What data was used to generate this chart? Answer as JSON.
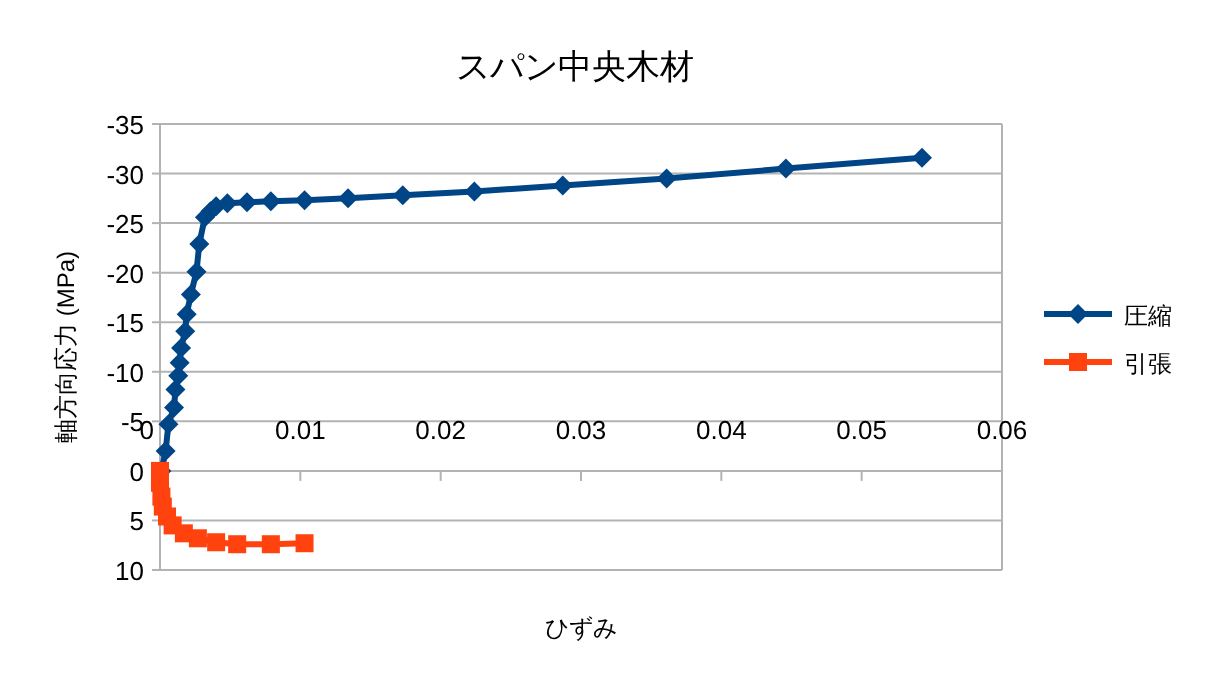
{
  "chart_data": {
    "type": "line",
    "title": "スパン中央木材",
    "xlabel": "ひずみ",
    "ylabel": "軸方向応力 (MPa)",
    "xlim": [
      0,
      0.06
    ],
    "xticks": [
      0,
      0.01,
      0.02,
      0.03,
      0.04,
      0.05,
      0.06
    ],
    "ylim": [
      10,
      -35
    ],
    "yticks": [
      -35,
      -30,
      -25,
      -20,
      -15,
      -10,
      -5,
      0,
      5,
      10
    ],
    "grid": "y",
    "legend": "right",
    "line_style": "solid",
    "series": [
      {
        "name": "圧縮",
        "color": "#004586",
        "marker": "diamond",
        "x": [
          0.0001,
          0.0004,
          0.0006,
          0.001,
          0.0011,
          0.0013,
          0.0014,
          0.0015,
          0.0018,
          0.0019,
          0.0022,
          0.0026,
          0.0028,
          0.0032,
          0.0036,
          0.004,
          0.0048,
          0.0062,
          0.0079,
          0.0103,
          0.0134,
          0.0173,
          0.0224,
          0.0287,
          0.0361,
          0.0446,
          0.0543
        ],
        "values": [
          0,
          -2,
          -4.7,
          -6.4,
          -8.2,
          -9.6,
          -10.9,
          -12.4,
          -14.1,
          -15.8,
          -17.8,
          -20.1,
          -22.9,
          -25.6,
          -26.2,
          -26.7,
          -27,
          -27.1,
          -27.2,
          -27.3,
          -27.5,
          -27.8,
          -28.2,
          -28.8,
          -29.5,
          -30.5,
          -31.6
        ]
      },
      {
        "name": "引張",
        "color": "#ff420e",
        "marker": "square",
        "x": [
          0,
          0,
          0.0001,
          0.0002,
          0.0005,
          0.0009,
          0.0017,
          0.0027,
          0.004,
          0.0055,
          0.0079,
          0.0103
        ],
        "values": [
          0,
          1.2,
          2.6,
          3.6,
          4.6,
          5.5,
          6.3,
          6.8,
          7.2,
          7.4,
          7.4,
          7.3
        ]
      }
    ]
  }
}
